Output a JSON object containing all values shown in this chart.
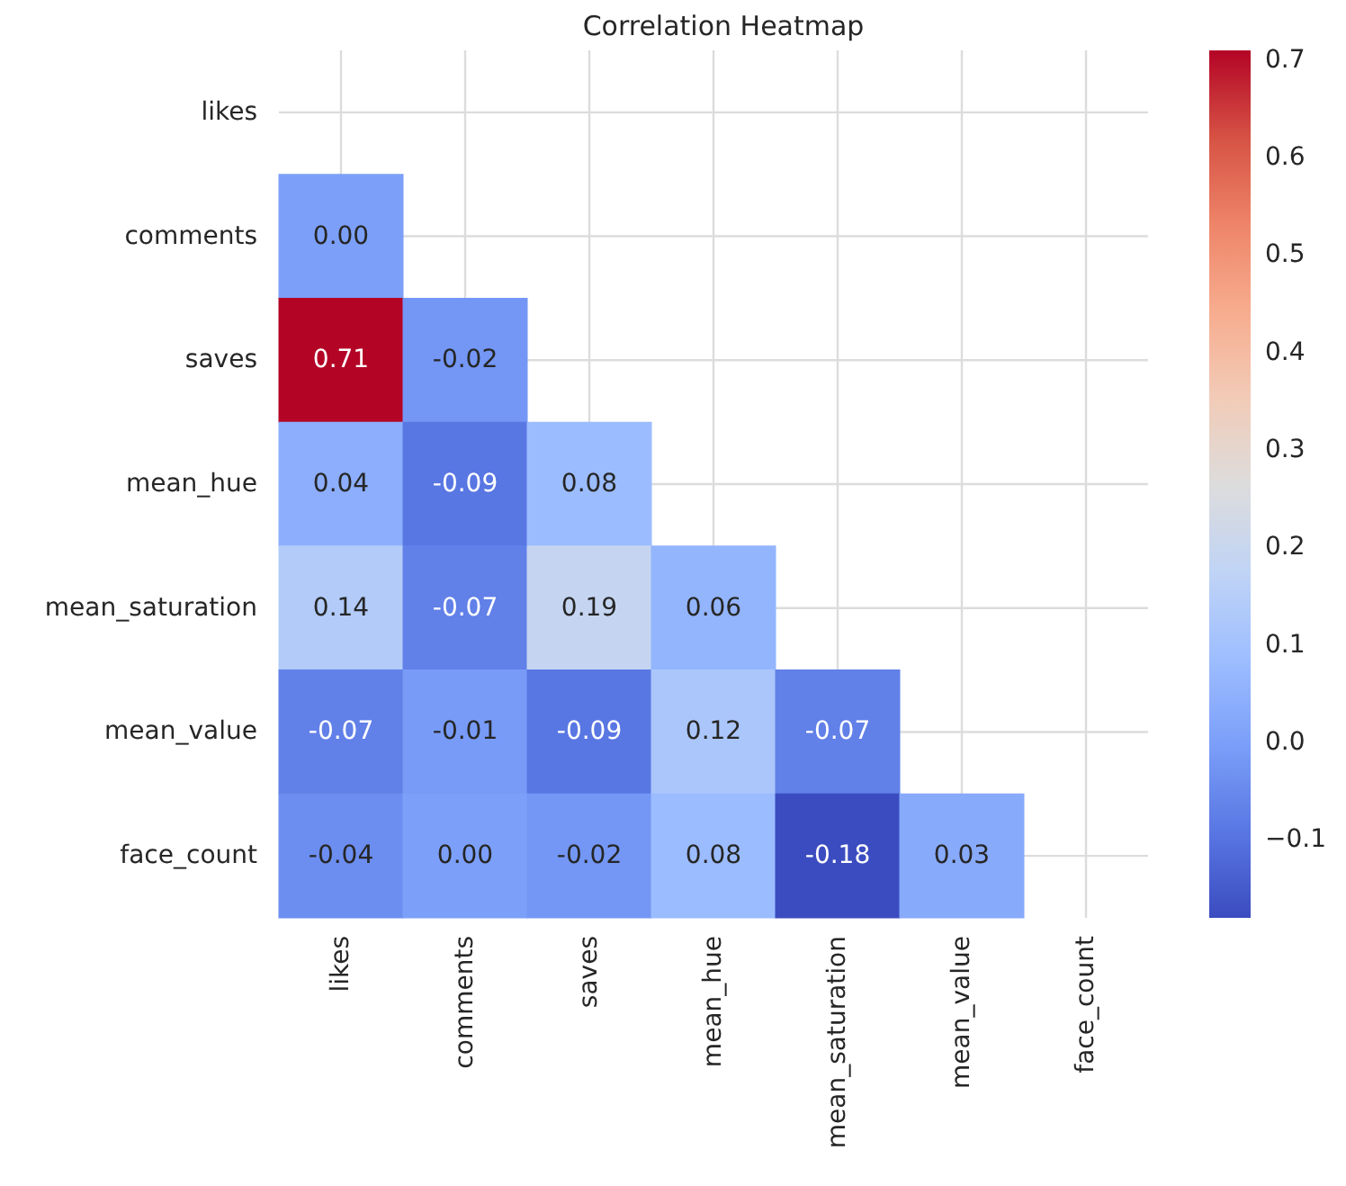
{
  "chart_data": {
    "type": "heatmap",
    "title": "Correlation Heatmap",
    "categories": [
      "likes",
      "comments",
      "saves",
      "mean_hue",
      "mean_saturation",
      "mean_value",
      "face_count"
    ],
    "y_categories": [
      "likes",
      "comments",
      "saves",
      "mean_hue",
      "mean_saturation",
      "mean_value",
      "face_count"
    ],
    "cells": [
      [
        null,
        null,
        null,
        null,
        null,
        null,
        null
      ],
      [
        0.0,
        null,
        null,
        null,
        null,
        null,
        null
      ],
      [
        0.71,
        -0.02,
        null,
        null,
        null,
        null,
        null
      ],
      [
        0.04,
        -0.09,
        0.08,
        null,
        null,
        null,
        null
      ],
      [
        0.14,
        -0.07,
        0.19,
        0.06,
        null,
        null,
        null
      ],
      [
        -0.07,
        -0.01,
        -0.09,
        0.12,
        -0.07,
        null,
        null
      ],
      [
        -0.04,
        0.0,
        -0.02,
        0.08,
        -0.18,
        0.03,
        null
      ]
    ],
    "cell_labels": [
      [
        null,
        null,
        null,
        null,
        null,
        null,
        null
      ],
      [
        "0.00",
        null,
        null,
        null,
        null,
        null,
        null
      ],
      [
        "0.71",
        "-0.02",
        null,
        null,
        null,
        null,
        null
      ],
      [
        "0.04",
        "-0.09",
        "0.08",
        null,
        null,
        null,
        null
      ],
      [
        "0.14",
        "-0.07",
        "0.19",
        "0.06",
        null,
        null,
        null
      ],
      [
        "-0.07",
        "-0.01",
        "-0.09",
        "0.12",
        "-0.07",
        null,
        null
      ],
      [
        "-0.04",
        "0.00",
        "-0.02",
        "0.08",
        "-0.18",
        "0.03",
        null
      ]
    ],
    "clim": [
      -0.18,
      0.71
    ],
    "cticks": [
      {
        "value": -0.1,
        "label": "−0.1"
      },
      {
        "value": 0,
        "label": "0.0"
      },
      0.1,
      0.2,
      0.3,
      0.4,
      0.5,
      0.6,
      0.7
    ],
    "grid": true
  }
}
